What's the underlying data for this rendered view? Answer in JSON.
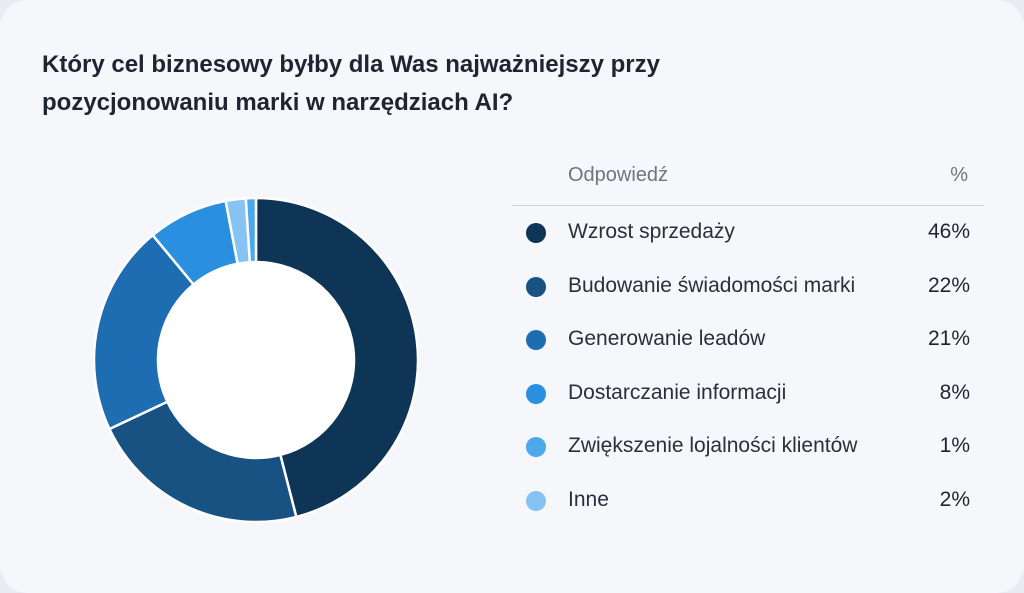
{
  "title": "Który cel biznesowy byłby dla Was najważniejszy przy pozycjonowaniu marki w narzędziach AI?",
  "legend": {
    "header_label": "Odpowiedź",
    "header_pct": "%"
  },
  "chart_data": {
    "type": "pie",
    "variant": "donut",
    "title": "Który cel biznesowy byłby dla Was najważniejszy przy pozycjonowaniu marki w narzędziach AI?",
    "categories": [
      "Wzrost sprzedaży",
      "Budowanie świadomości marki",
      "Generowanie leadów",
      "Dostarczanie informacji",
      "Zwiększenie lojalności klientów",
      "Inne"
    ],
    "values": [
      46,
      22,
      21,
      8,
      1,
      2
    ],
    "value_labels": [
      "46%",
      "22%",
      "21%",
      "8%",
      "1%",
      "2%"
    ],
    "colors": [
      "#0e3556",
      "#175282",
      "#1e6db2",
      "#2a8fde",
      "#4da8ea",
      "#86c3f2"
    ],
    "legend_position": "right"
  }
}
